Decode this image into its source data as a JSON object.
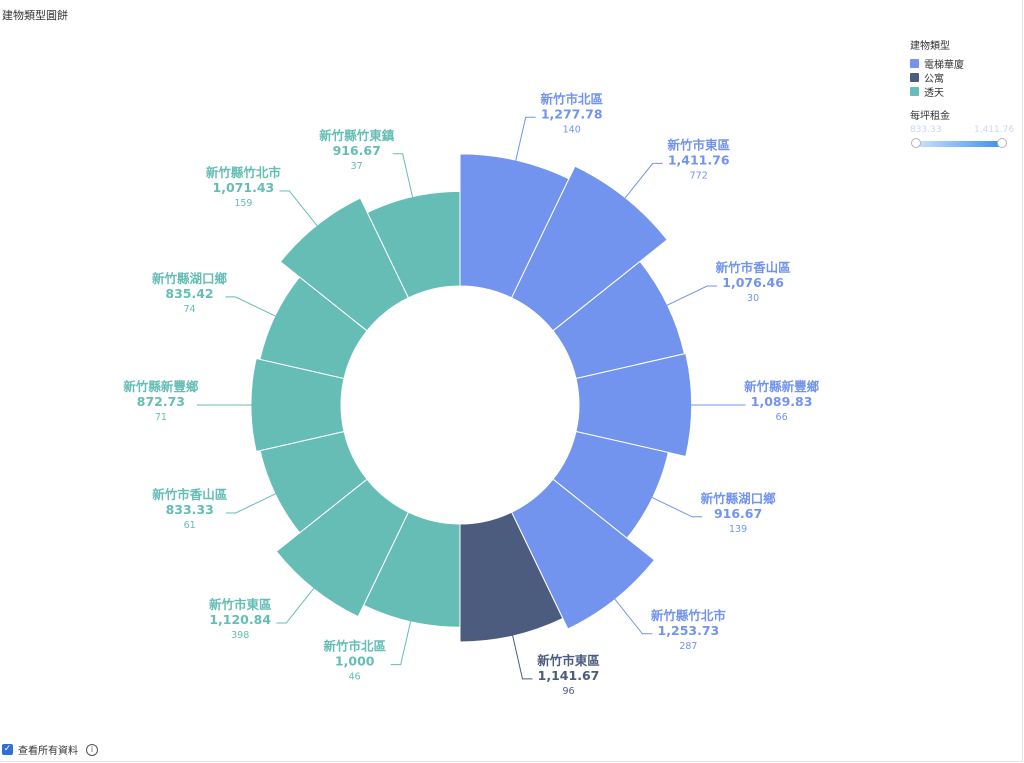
{
  "title": "建物類型圓餅",
  "legend": {
    "title": "建物類型",
    "items": [
      {
        "label": "電梯華廈",
        "color": "#7294ee"
      },
      {
        "label": "公寓",
        "color": "#4b5c7e"
      },
      {
        "label": "透天",
        "color": "#65bdb6"
      }
    ]
  },
  "color_scale": {
    "title": "每坪租金",
    "min_label": "833.33",
    "max_label": "1,411.76"
  },
  "footer": {
    "checkbox_label": "查看所有資料"
  },
  "chart_data": {
    "type": "pie",
    "variant": "rose-donut",
    "title": "",
    "slices": [
      {
        "label": "新竹市北區",
        "value": 1277.78,
        "value_label": "1,277.78",
        "count": 140,
        "group": "電梯華廈",
        "color": "#7294ee"
      },
      {
        "label": "新竹市東區",
        "value": 1411.76,
        "value_label": "1,411.76",
        "count": 772,
        "group": "電梯華廈",
        "color": "#7294ee"
      },
      {
        "label": "新竹市香山區",
        "value": 1076.46,
        "value_label": "1,076.46",
        "count": 30,
        "group": "電梯華廈",
        "color": "#7294ee"
      },
      {
        "label": "新竹縣新豐鄉",
        "value": 1089.83,
        "value_label": "1,089.83",
        "count": 66,
        "group": "電梯華廈",
        "color": "#7294ee"
      },
      {
        "label": "新竹縣湖口鄉",
        "value": 916.67,
        "value_label": "916.67",
        "count": 139,
        "group": "電梯華廈",
        "color": "#7294ee"
      },
      {
        "label": "新竹縣竹北市",
        "value": 1253.73,
        "value_label": "1,253.73",
        "count": 287,
        "group": "電梯華廈",
        "color": "#7294ee"
      },
      {
        "label": "新竹市東區",
        "value": 1141.67,
        "value_label": "1,141.67",
        "count": 96,
        "group": "公寓",
        "color": "#4b5c7e"
      },
      {
        "label": "新竹市北區",
        "value": 1000,
        "value_label": "1,000",
        "count": 46,
        "group": "透天",
        "color": "#65bdb6"
      },
      {
        "label": "新竹市東區",
        "value": 1120.84,
        "value_label": "1,120.84",
        "count": 398,
        "group": "透天",
        "color": "#65bdb6"
      },
      {
        "label": "新竹市香山區",
        "value": 833.33,
        "value_label": "833.33",
        "count": 61,
        "group": "透天",
        "color": "#65bdb6"
      },
      {
        "label": "新竹縣新豐鄉",
        "value": 872.73,
        "value_label": "872.73",
        "count": 71,
        "group": "透天",
        "color": "#65bdb6"
      },
      {
        "label": "新竹縣湖口鄉",
        "value": 835.42,
        "value_label": "835.42",
        "count": 74,
        "group": "透天",
        "color": "#65bdb6"
      },
      {
        "label": "新竹縣竹北市",
        "value": 1071.43,
        "value_label": "1,071.43",
        "count": 159,
        "group": "透天",
        "color": "#65bdb6"
      },
      {
        "label": "新竹縣竹東鎮",
        "value": 916.67,
        "value_label": "916.67",
        "count": 37,
        "group": "透天",
        "color": "#65bdb6"
      }
    ]
  }
}
